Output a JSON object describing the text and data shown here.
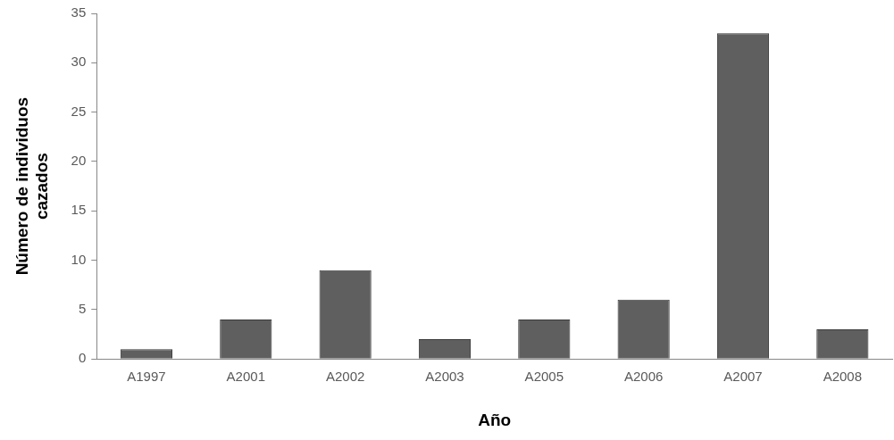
{
  "chart_data": {
    "type": "bar",
    "xlabel": "Año",
    "ylabel": "Número de individuos cazados",
    "categories": [
      "A1997",
      "A2001",
      "A2002",
      "A2003",
      "A2005",
      "A2006",
      "A2007",
      "A2008"
    ],
    "values": [
      1,
      4,
      9,
      2,
      4,
      6,
      33,
      3
    ],
    "color": "#5f5f5f",
    "ylim": [
      0,
      35
    ],
    "yticks": [
      0,
      5,
      10,
      15,
      20,
      25,
      30,
      35
    ],
    "grid": false,
    "legend": false
  }
}
